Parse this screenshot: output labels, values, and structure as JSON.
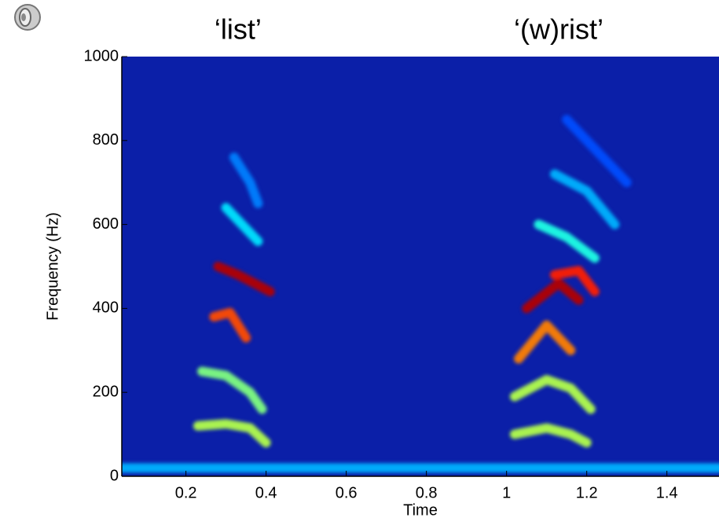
{
  "chart_data": {
    "type": "spectrogram",
    "xlabel": "Time",
    "ylabel": "Frequency (Hz)",
    "xlim": [
      0.04,
      1.53
    ],
    "ylim": [
      0,
      1000
    ],
    "xticks": [
      0.2,
      0.4,
      0.6,
      0.8,
      1,
      1.2,
      1.4
    ],
    "yticks": [
      0,
      200,
      400,
      600,
      800,
      1000
    ],
    "colormap": "jet",
    "background": "#0b1fa8",
    "annotations": [
      {
        "text": "‘list’",
        "x": 0.33
      },
      {
        "text": "‘(w)rist’",
        "x": 1.13
      }
    ],
    "series": [
      {
        "x": [
          0.04,
          1.53
        ],
        "values": [
          20,
          20
        ],
        "z": 0.3
      },
      {
        "x": [
          0.23,
          0.3,
          0.36,
          0.4
        ],
        "values": [
          120,
          125,
          115,
          80
        ],
        "z": 0.55
      },
      {
        "x": [
          0.24,
          0.3,
          0.36,
          0.39
        ],
        "values": [
          250,
          240,
          200,
          160
        ],
        "z": 0.5
      },
      {
        "x": [
          0.27,
          0.31,
          0.35
        ],
        "values": [
          380,
          390,
          330
        ],
        "z": 0.8
      },
      {
        "x": [
          0.28,
          0.33,
          0.37,
          0.41
        ],
        "values": [
          500,
          480,
          460,
          440
        ],
        "z": 0.95
      },
      {
        "x": [
          0.3,
          0.34,
          0.38
        ],
        "values": [
          640,
          600,
          560
        ],
        "z": 0.35
      },
      {
        "x": [
          0.32,
          0.36,
          0.38
        ],
        "values": [
          760,
          700,
          650
        ],
        "z": 0.25
      },
      {
        "x": [
          1.02,
          1.1,
          1.16,
          1.2
        ],
        "values": [
          100,
          115,
          100,
          80
        ],
        "z": 0.55
      },
      {
        "x": [
          1.02,
          1.1,
          1.16,
          1.21
        ],
        "values": [
          190,
          230,
          210,
          160
        ],
        "z": 0.55
      },
      {
        "x": [
          1.03,
          1.1,
          1.16
        ],
        "values": [
          280,
          360,
          300
        ],
        "z": 0.75
      },
      {
        "x": [
          1.05,
          1.13,
          1.18
        ],
        "values": [
          400,
          460,
          420
        ],
        "z": 0.95
      },
      {
        "x": [
          1.12,
          1.18,
          1.22
        ],
        "values": [
          480,
          490,
          440
        ],
        "z": 0.85
      },
      {
        "x": [
          1.08,
          1.15,
          1.22
        ],
        "values": [
          600,
          570,
          520
        ],
        "z": 0.4
      },
      {
        "x": [
          1.12,
          1.2,
          1.27
        ],
        "values": [
          720,
          680,
          600
        ],
        "z": 0.3
      },
      {
        "x": [
          1.15,
          1.2,
          1.3
        ],
        "values": [
          850,
          800,
          700
        ],
        "z": 0.2
      }
    ]
  }
}
